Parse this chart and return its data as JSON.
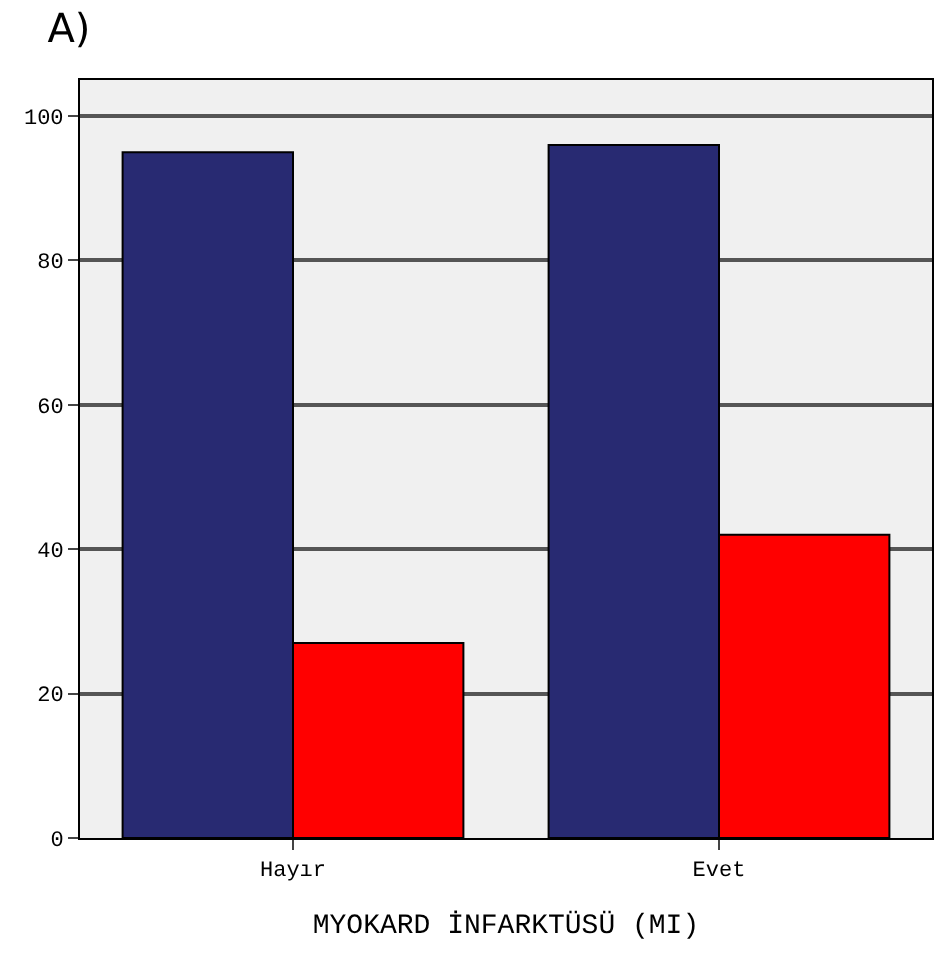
{
  "chart_data": {
    "type": "bar",
    "title": "A)",
    "xlabel": "MYOKARD İNFARKTÜSÜ (MI)",
    "categories": [
      "Hayır",
      "Evet"
    ],
    "series": [
      {
        "color": "#282a72",
        "values": [
          95,
          96
        ]
      },
      {
        "color": "#ff0000",
        "values": [
          27,
          42
        ]
      }
    ],
    "ylim": [
      0,
      105
    ],
    "yticks": [
      0,
      20,
      40,
      60,
      80,
      100
    ],
    "grid": "y"
  }
}
